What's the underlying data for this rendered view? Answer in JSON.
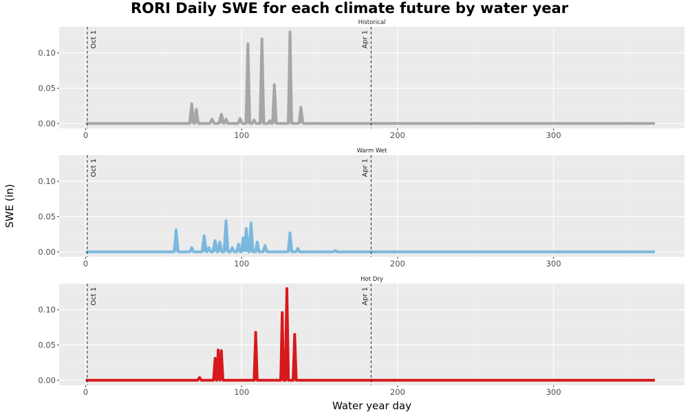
{
  "figure": {
    "title": "RORI Daily SWE for each climate future by water year",
    "xlabel": "Water year day",
    "ylabel": "SWE (in)"
  },
  "chart_data": {
    "type": "area",
    "xlim": [
      -17,
      384
    ],
    "ylim": [
      -0.007,
      0.137
    ],
    "xticks": [
      0,
      100,
      200,
      300
    ],
    "yticks": [
      0.0,
      0.05,
      0.1
    ],
    "ytick_labels": [
      "0.00",
      "0.05",
      "0.10"
    ],
    "grid": true,
    "vlines": [
      {
        "x": 1,
        "label": "Oct 1"
      },
      {
        "x": 183,
        "label": "Apr 1"
      }
    ],
    "panels": [
      {
        "name": "Historical",
        "color": "#a6a6a6",
        "x_range": [
          0,
          365
        ],
        "peaks": [
          [
            68,
            0.028,
            1.4
          ],
          [
            71,
            0.02,
            1.2
          ],
          [
            81,
            0.006,
            1.5
          ],
          [
            87,
            0.013,
            1.6
          ],
          [
            90,
            0.006,
            1.2
          ],
          [
            99,
            0.007,
            1.3
          ],
          [
            104,
            0.113,
            1.2
          ],
          [
            108,
            0.005,
            1.2
          ],
          [
            113,
            0.12,
            1.2
          ],
          [
            118,
            0.004,
            1.0
          ],
          [
            121,
            0.055,
            1.2
          ],
          [
            131,
            0.13,
            1.1
          ],
          [
            138,
            0.023,
            1.3
          ]
        ]
      },
      {
        "name": "Warm Wet",
        "color": "#7bb8de",
        "x_range": [
          0,
          365
        ],
        "peaks": [
          [
            58,
            0.031,
            1.3
          ],
          [
            68,
            0.006,
            1.2
          ],
          [
            76,
            0.023,
            1.3
          ],
          [
            79,
            0.006,
            1.2
          ],
          [
            83,
            0.016,
            1.5
          ],
          [
            86,
            0.014,
            1.3
          ],
          [
            90,
            0.044,
            1.3
          ],
          [
            94,
            0.006,
            1.2
          ],
          [
            98,
            0.011,
            1.2
          ],
          [
            101,
            0.02,
            1.2
          ],
          [
            103,
            0.033,
            1.3
          ],
          [
            106,
            0.041,
            1.2
          ],
          [
            110,
            0.014,
            1.2
          ],
          [
            115,
            0.009,
            1.3
          ],
          [
            131,
            0.027,
            1.2
          ],
          [
            136,
            0.005,
            1.2
          ],
          [
            160,
            0.002,
            1.2
          ]
        ]
      },
      {
        "name": "Hot Dry",
        "color": "#d7191c",
        "x_range": [
          0,
          365
        ],
        "peaks": [
          [
            73,
            0.004,
            1.2
          ],
          [
            83,
            0.031,
            1.0
          ],
          [
            85,
            0.043,
            1.0
          ],
          [
            87,
            0.042,
            1.0
          ],
          [
            109,
            0.068,
            1.0
          ],
          [
            126,
            0.096,
            0.9
          ],
          [
            129,
            0.13,
            1.0
          ],
          [
            134,
            0.065,
            1.0
          ]
        ]
      }
    ]
  }
}
